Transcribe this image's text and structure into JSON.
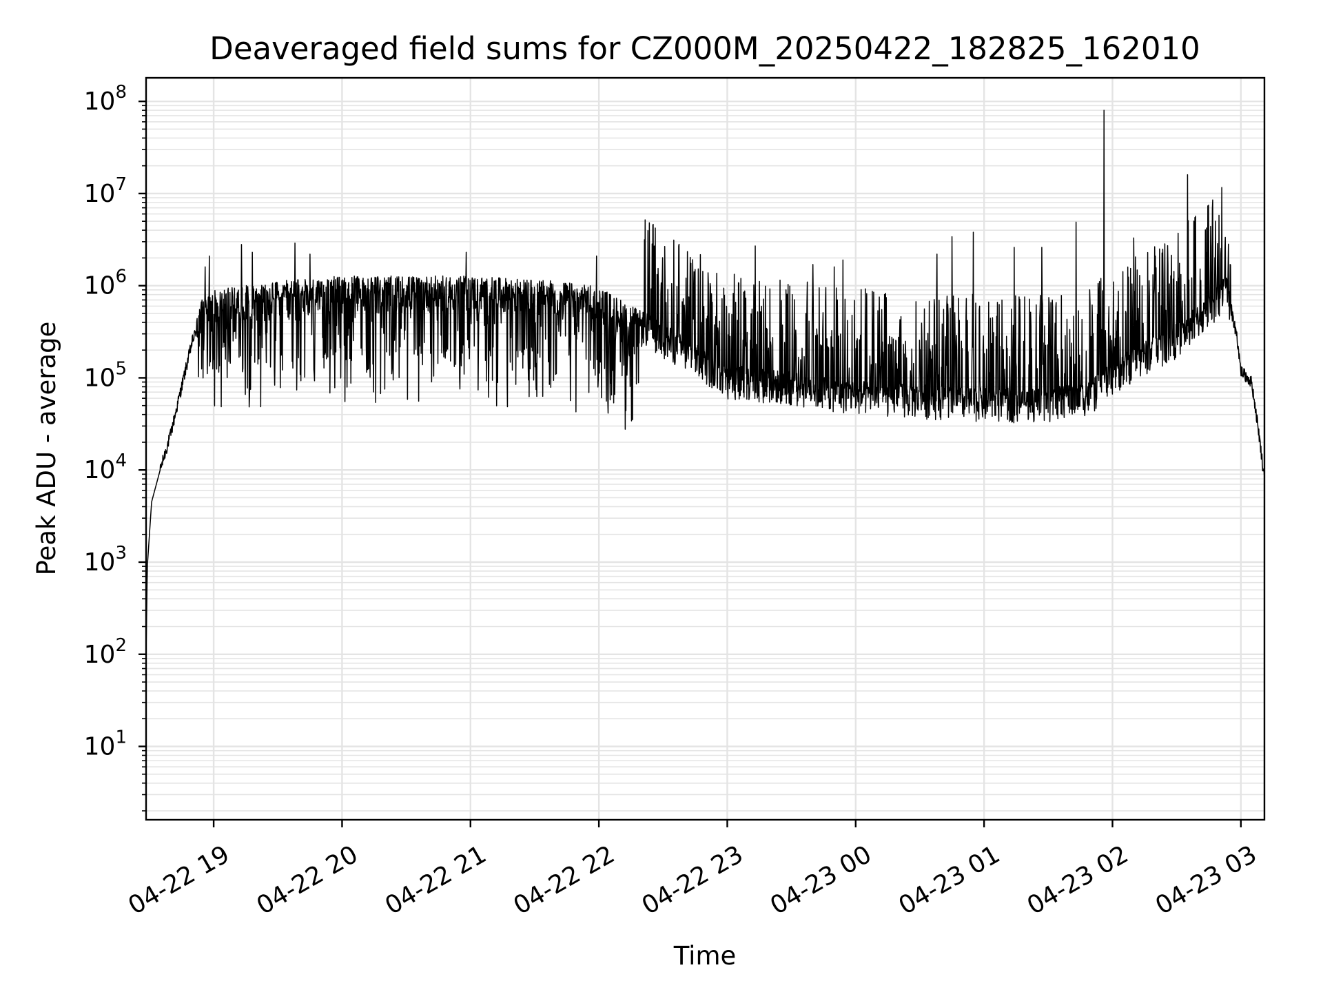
{
  "chart_data": {
    "type": "line",
    "title": "Deaveraged field sums for CZ000M_20250422_182825_162010",
    "xlabel": "Time",
    "ylabel": "Peak ADU - average",
    "x_scale": "time",
    "y_scale": "log",
    "xlim": [
      "2025-04-22T18:28:25",
      "2025-04-23T03:11:00"
    ],
    "ylim": [
      1.6,
      180000000
    ],
    "grid": true,
    "legend": "none",
    "line_color": "#000000",
    "x_ticks": [
      {
        "value": "2025-04-22T19:00:00",
        "label": "04-22 19"
      },
      {
        "value": "2025-04-22T20:00:00",
        "label": "04-22 20"
      },
      {
        "value": "2025-04-22T21:00:00",
        "label": "04-22 21"
      },
      {
        "value": "2025-04-22T22:00:00",
        "label": "04-22 22"
      },
      {
        "value": "2025-04-22T23:00:00",
        "label": "04-22 23"
      },
      {
        "value": "2025-04-23T00:00:00",
        "label": "04-23 00"
      },
      {
        "value": "2025-04-23T01:00:00",
        "label": "04-23 01"
      },
      {
        "value": "2025-04-23T02:00:00",
        "label": "04-23 02"
      },
      {
        "value": "2025-04-23T03:00:00",
        "label": "04-23 03"
      }
    ],
    "y_ticks": [
      {
        "value": 10,
        "base": "10",
        "exp": "1"
      },
      {
        "value": 100,
        "base": "10",
        "exp": "2"
      },
      {
        "value": 1000,
        "base": "10",
        "exp": "3"
      },
      {
        "value": 10000,
        "base": "10",
        "exp": "4"
      },
      {
        "value": 100000,
        "base": "10",
        "exp": "5"
      },
      {
        "value": 1000000,
        "base": "10",
        "exp": "6"
      },
      {
        "value": 10000000,
        "base": "10",
        "exp": "7"
      },
      {
        "value": 100000000,
        "base": "10",
        "exp": "8"
      }
    ],
    "series": [
      {
        "baseline": [
          [
            "2025-04-22T18:28:25",
            100
          ],
          [
            "2025-04-22T18:29:00",
            900
          ],
          [
            "2025-04-22T18:31:00",
            4500
          ],
          [
            "2025-04-22T18:35:00",
            10000
          ],
          [
            "2025-04-22T18:40:00",
            25000
          ],
          [
            "2025-04-22T18:45:00",
            80000
          ],
          [
            "2025-04-22T18:50:00",
            250000
          ],
          [
            "2025-04-22T18:55:00",
            500000
          ],
          [
            "2025-04-22T19:00:00",
            600000
          ],
          [
            "2025-04-22T19:30:00",
            750000
          ],
          [
            "2025-04-22T20:00:00",
            850000
          ],
          [
            "2025-04-22T21:00:00",
            850000
          ],
          [
            "2025-04-22T21:40:00",
            750000
          ],
          [
            "2025-04-22T22:00:00",
            650000
          ],
          [
            "2025-04-22T22:20:00",
            350000
          ],
          [
            "2025-04-22T22:40:00",
            180000
          ],
          [
            "2025-04-22T23:00:00",
            90000
          ],
          [
            "2025-04-22T23:30:00",
            75000
          ],
          [
            "2025-04-23T00:00:00",
            60000
          ],
          [
            "2025-04-23T00:30:00",
            55000
          ],
          [
            "2025-04-23T01:00:00",
            50000
          ],
          [
            "2025-04-23T01:30:00",
            50000
          ],
          [
            "2025-04-23T01:50:00",
            60000
          ],
          [
            "2025-04-23T02:00:00",
            100000
          ],
          [
            "2025-04-23T02:15:00",
            160000
          ],
          [
            "2025-04-23T02:30:00",
            250000
          ],
          [
            "2025-04-23T02:45:00",
            500000
          ],
          [
            "2025-04-23T02:53:00",
            900000
          ],
          [
            "2025-04-23T02:58:00",
            300000
          ],
          [
            "2025-04-23T03:00:00",
            120000
          ],
          [
            "2025-04-23T03:05:00",
            90000
          ],
          [
            "2025-04-23T03:08:00",
            30000
          ],
          [
            "2025-04-23T03:11:00",
            8000
          ]
        ],
        "peaks": [
          [
            "2025-04-22T18:56:00",
            1600000
          ],
          [
            "2025-04-22T18:58:00",
            2100000
          ],
          [
            "2025-04-22T19:13:00",
            2800000
          ],
          [
            "2025-04-22T19:18:00",
            2300000
          ],
          [
            "2025-04-22T19:38:00",
            2900000
          ],
          [
            "2025-04-22T19:45:00",
            2200000
          ],
          [
            "2025-04-22T20:58:00",
            2300000
          ],
          [
            "2025-04-22T21:59:00",
            2100000
          ],
          [
            "2025-04-22T22:45:00",
            1500000
          ],
          [
            "2025-04-22T23:13:00",
            2700000
          ],
          [
            "2025-04-22T23:40:00",
            1700000
          ],
          [
            "2025-04-22T23:50:00",
            1600000
          ],
          [
            "2025-04-22T23:54:00",
            1900000
          ],
          [
            "2025-04-23T00:38:00",
            2200000
          ],
          [
            "2025-04-23T00:45:00",
            3400000
          ],
          [
            "2025-04-23T00:55:00",
            3800000
          ],
          [
            "2025-04-23T01:14:00",
            2600000
          ],
          [
            "2025-04-23T01:27:00",
            2600000
          ],
          [
            "2025-04-23T01:43:00",
            4900000
          ],
          [
            "2025-04-23T01:56:00",
            80000000
          ],
          [
            "2025-04-23T02:10:00",
            3300000
          ],
          [
            "2025-04-23T02:20:00",
            2100000
          ],
          [
            "2025-04-23T02:35:00",
            16000000
          ],
          [
            "2025-04-23T02:45:00",
            1700000
          ],
          [
            "2025-04-23T02:55:00",
            1700000
          ]
        ]
      }
    ]
  }
}
